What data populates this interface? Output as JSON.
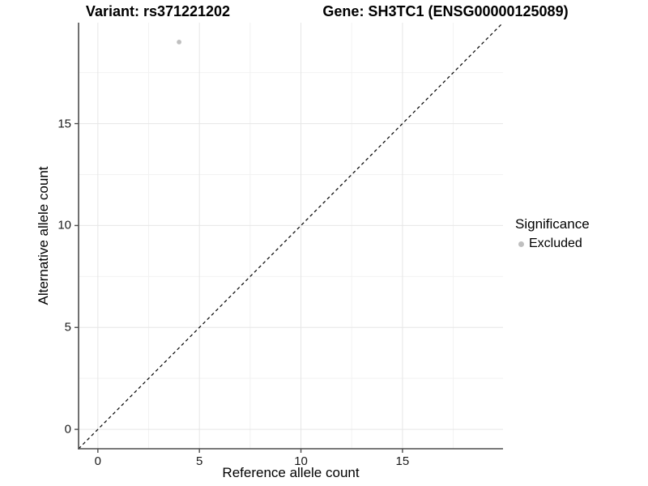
{
  "chart_data": {
    "type": "scatter",
    "title_left": "Variant: rs371221202",
    "title_right": "Gene: SH3TC1 (ENSG00000125089)",
    "xlabel": "Reference allele count",
    "ylabel": "Alternative allele count",
    "xlim": [
      -0.95,
      19.95
    ],
    "ylim": [
      -0.95,
      19.95
    ],
    "xticks": [
      0,
      5,
      10,
      15
    ],
    "yticks": [
      0,
      5,
      10,
      15
    ],
    "x_minor_ticks": [
      2.5,
      7.5,
      12.5,
      17.5
    ],
    "y_minor_ticks": [
      2.5,
      7.5,
      12.5,
      17.5
    ],
    "grid": true,
    "points": [
      {
        "x": 4,
        "y": 19,
        "series": "Excluded"
      }
    ],
    "reference_line": {
      "slope": 1,
      "intercept": 0,
      "style": "dashed"
    },
    "legend": {
      "title": "Significance",
      "position": "right",
      "items": [
        {
          "label": "Excluded",
          "color": "#bfbfbf"
        }
      ]
    },
    "colors": {
      "background": "#ffffff",
      "point": "#bfbfbf",
      "axis_line": "#4d4d4d",
      "grid_major": "#e6e6e6",
      "grid_minor": "#f2f2f2",
      "reference_line": "#111111",
      "text": "#000000"
    }
  }
}
